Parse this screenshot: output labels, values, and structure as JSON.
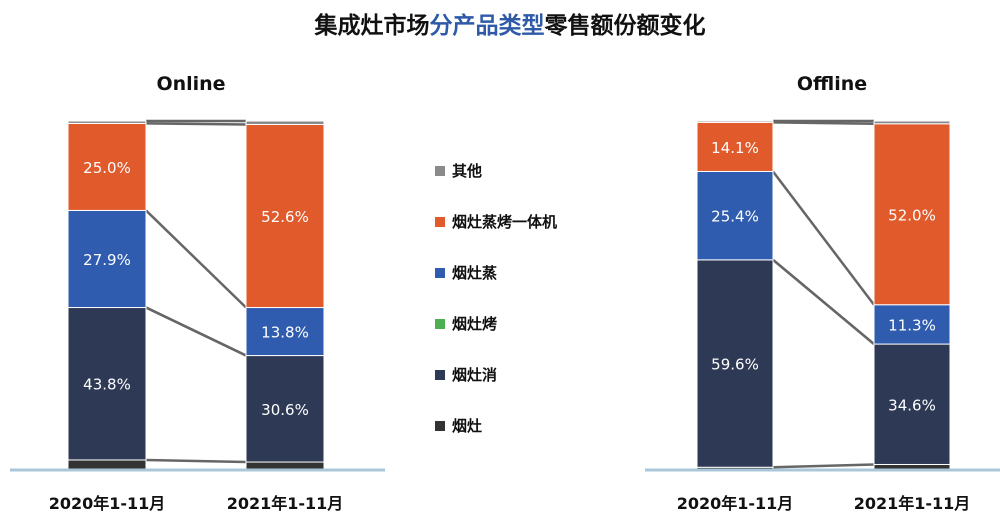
{
  "title_parts": [
    {
      "text": "集成灶市场",
      "color": "#111111"
    },
    {
      "text": "分产品类型",
      "color": "#2e5aa8"
    },
    {
      "text": "零售额份额变化",
      "color": "#111111"
    }
  ],
  "colors": {
    "other": "#8a8a8a",
    "steam_oven": "#e05a2b",
    "steam": "#2f5cae",
    "oven": "#4caf50",
    "disinfect": "#2e3a55",
    "basic": "#333333",
    "baseline": "#a8c7d8",
    "connector": "#666666"
  },
  "legend": [
    {
      "label": "其他",
      "key": "other"
    },
    {
      "label": "烟灶蒸烤一体机",
      "key": "steam_oven"
    },
    {
      "label": "烟灶蒸",
      "key": "steam"
    },
    {
      "label": "烟灶烤",
      "key": "oven"
    },
    {
      "label": "烟灶消",
      "key": "disinfect"
    },
    {
      "label": "烟灶",
      "key": "basic"
    }
  ],
  "chart_data": [
    {
      "type": "bar",
      "stacked": true,
      "title": "Online",
      "categories": [
        "2020年1-11月",
        "2021年1-11月"
      ],
      "series": [
        {
          "name": "烟灶",
          "key": "basic",
          "values": [
            2.6,
            2.0
          ]
        },
        {
          "name": "烟灶消",
          "key": "disinfect",
          "values": [
            43.8,
            30.6
          ]
        },
        {
          "name": "烟灶烤",
          "key": "oven",
          "values": [
            0.0,
            0.0
          ]
        },
        {
          "name": "烟灶蒸",
          "key": "steam",
          "values": [
            27.9,
            13.8
          ]
        },
        {
          "name": "烟灶蒸烤一体机",
          "key": "steam_oven",
          "values": [
            25.0,
            52.6
          ]
        },
        {
          "name": "其他",
          "key": "other",
          "values": [
            0.7,
            1.0
          ]
        }
      ],
      "labels": {
        "basic": [
          "",
          ""
        ],
        "disinfect": [
          "43.8%",
          "30.6%"
        ],
        "oven": [
          "",
          ""
        ],
        "steam": [
          "27.9%",
          "13.8%"
        ],
        "steam_oven": [
          "25.0%",
          "52.6%"
        ],
        "other": [
          "",
          ""
        ]
      },
      "ylim": [
        0,
        100
      ]
    },
    {
      "type": "bar",
      "stacked": true,
      "title": "Offline",
      "categories": [
        "2020年1-11月",
        "2021年1-11月"
      ],
      "series": [
        {
          "name": "烟灶",
          "key": "basic",
          "values": [
            0.5,
            1.3
          ]
        },
        {
          "name": "烟灶消",
          "key": "disinfect",
          "values": [
            59.6,
            34.6
          ]
        },
        {
          "name": "烟灶烤",
          "key": "oven",
          "values": [
            0.0,
            0.0
          ]
        },
        {
          "name": "烟灶蒸",
          "key": "steam",
          "values": [
            25.4,
            11.3
          ]
        },
        {
          "name": "烟灶蒸烤一体机",
          "key": "steam_oven",
          "values": [
            14.1,
            52.0
          ]
        },
        {
          "name": "其他",
          "key": "other",
          "values": [
            0.4,
            0.8
          ]
        }
      ],
      "labels": {
        "basic": [
          "",
          ""
        ],
        "disinfect": [
          "59.6%",
          "34.6%"
        ],
        "oven": [
          "",
          ""
        ],
        "steam": [
          "25.4%",
          "11.3%"
        ],
        "steam_oven": [
          "14.1%",
          "52.0%"
        ],
        "other": [
          "",
          ""
        ]
      },
      "ylim": [
        0,
        100
      ]
    }
  ]
}
